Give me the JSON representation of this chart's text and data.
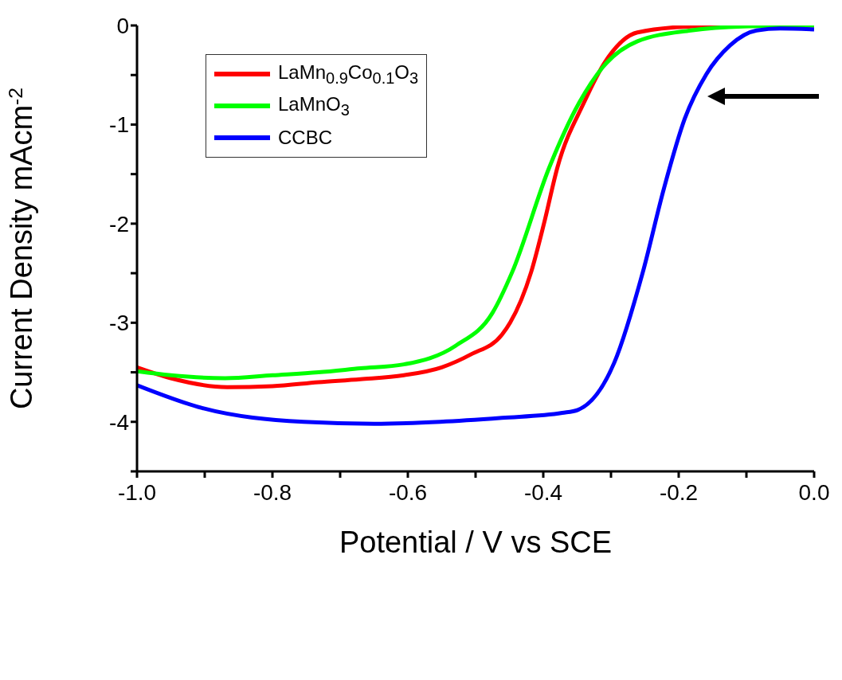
{
  "chart_data": {
    "type": "line",
    "xlabel": "Potential / V vs SCE",
    "ylabel": "Current Density mAcm$^{-2}$",
    "xlim": [
      -1.0,
      0.0
    ],
    "ylim": [
      -4.5,
      0
    ],
    "xticks": [
      {
        "value": -1.0,
        "label": "-1.0"
      },
      {
        "value": -0.9,
        "label": null
      },
      {
        "value": -0.8,
        "label": "-0.8"
      },
      {
        "value": -0.7,
        "label": null
      },
      {
        "value": -0.6,
        "label": "-0.6"
      },
      {
        "value": -0.5,
        "label": null
      },
      {
        "value": -0.4,
        "label": "-0.4"
      },
      {
        "value": -0.3,
        "label": null
      },
      {
        "value": -0.2,
        "label": "-0.2"
      },
      {
        "value": -0.1,
        "label": null
      },
      {
        "value": 0.0,
        "label": "0.0"
      }
    ],
    "yticks": [
      {
        "value": -4.5,
        "label": null
      },
      -4,
      {
        "value": -3.5,
        "label": null
      },
      -3,
      {
        "value": -2.5,
        "label": null
      },
      -2,
      {
        "value": -1.5,
        "label": null
      },
      -1,
      {
        "value": -0.5,
        "label": null
      },
      0
    ],
    "legend": "top left",
    "marker": "none",
    "line_style": "solid",
    "series": [
      {
        "name": "LaMn$_{0.9}$Co$_{0.1}$O$_{3}$",
        "color": "#ff0000",
        "x": [
          -1.0,
          -0.95,
          -0.867,
          -0.8,
          -0.732,
          -0.67,
          -0.606,
          -0.55,
          -0.507,
          -0.461,
          -0.449,
          -0.418,
          -0.399,
          -0.379,
          -0.34,
          -0.308,
          -0.261,
          -0.182,
          -0.1,
          0.0
        ],
        "values": [
          -3.45,
          -3.56,
          -3.65,
          -3.64,
          -3.6,
          -3.57,
          -3.53,
          -3.45,
          -3.32,
          -3.12,
          -3.0,
          -2.49,
          -2.0,
          -1.43,
          -0.78,
          -0.36,
          -0.07,
          -0.01,
          0,
          0
        ]
      },
      {
        "name": "LaMnO$_{3}$",
        "color": "#00ff00",
        "x": [
          -1.0,
          -0.95,
          -0.87,
          -0.8,
          -0.732,
          -0.67,
          -0.606,
          -0.529,
          -0.475,
          -0.446,
          -0.391,
          -0.347,
          -0.312,
          -0.261,
          -0.182,
          -0.105,
          0.0
        ],
        "values": [
          -3.49,
          -3.53,
          -3.56,
          -3.53,
          -3.5,
          -3.46,
          -3.42,
          -3.23,
          -2.9,
          -2.49,
          -1.43,
          -0.78,
          -0.42,
          -0.16,
          -0.05,
          -0.01,
          0
        ]
      },
      {
        "name": "CCBC",
        "color": "#0000ff",
        "x": [
          -1.0,
          -0.904,
          -0.754,
          -0.65,
          -0.552,
          -0.461,
          -0.372,
          -0.349,
          -0.295,
          -0.253,
          -0.222,
          -0.191,
          -0.159,
          -0.124,
          -0.085,
          -0.05,
          0.0
        ],
        "values": [
          -3.63,
          -3.86,
          -4.0,
          -4.02,
          -4.0,
          -3.96,
          -3.91,
          -3.88,
          -3.4,
          -2.49,
          -1.65,
          -0.94,
          -0.49,
          -0.2,
          -0.05,
          -0.03,
          -0.04
        ]
      }
    ]
  }
}
